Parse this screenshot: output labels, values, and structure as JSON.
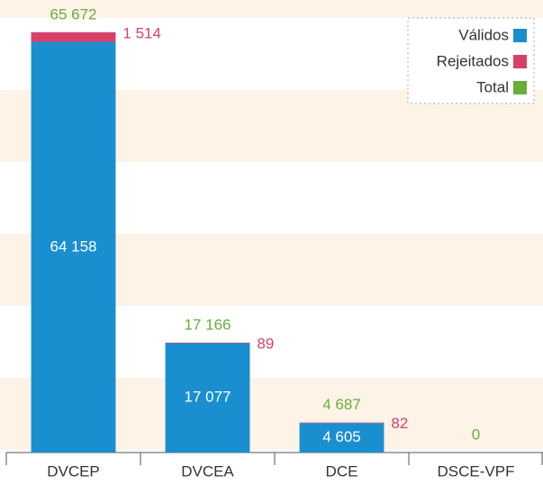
{
  "chart_data": {
    "type": "stacked-bar",
    "categories": [
      "DVCEP",
      "DVCEA",
      "DCE",
      "DSCE-VPF"
    ],
    "series": [
      {
        "name": "Válidos",
        "color": "#1a8fcf",
        "values": [
          64158,
          17077,
          4605,
          0
        ],
        "value_labels": [
          "64 158",
          "17 077",
          "4 605",
          null
        ]
      },
      {
        "name": "Rejeitados",
        "color": "#d6416a",
        "values": [
          1514,
          89,
          82,
          0
        ],
        "value_labels": [
          "1 514",
          "89",
          "82",
          null
        ]
      }
    ],
    "totals": {
      "name": "Total",
      "color": "#6aad3c",
      "values": [
        65672,
        17166,
        4687,
        0
      ],
      "value_labels": [
        "65 672",
        "17 166",
        "4 687",
        "0"
      ]
    },
    "ylim": [
      0,
      70000
    ],
    "legend": "top-right"
  }
}
